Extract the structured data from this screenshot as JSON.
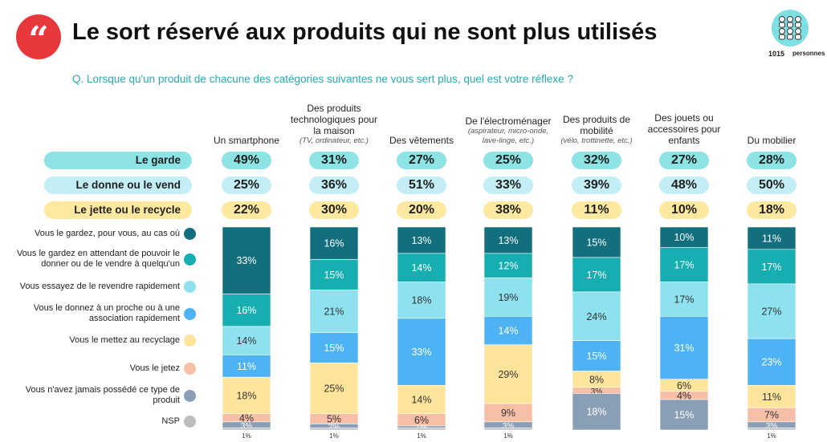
{
  "header": {
    "title": "Le sort réservé aux produits qui ne sont plus utilisés",
    "question": "Q. Lorsque qu'un produit de chacune des catégories suivantes ne vous sert plus, quel est votre réflexe ?",
    "quote_icon": "“",
    "respondents_count": "1015",
    "respondents_word": "personnes"
  },
  "colors": {
    "brand_red": "#e8383d",
    "garde": "#8ee3e5",
    "donne": "#c4eef5",
    "jette": "#ffe8a0",
    "question": "#2aa9b3"
  },
  "chart_data": {
    "type": "bar",
    "stacked": true,
    "categories": [
      {
        "label": "Un smartphone",
        "sub": ""
      },
      {
        "label": "Des produits technologiques pour la maison",
        "sub": "(TV, ordinateur, etc.)"
      },
      {
        "label": "Des vêtements",
        "sub": ""
      },
      {
        "label": "De l'électroménager",
        "sub": "(aspirateur, micro-onde, lave-linge, etc.)"
      },
      {
        "label": "Des produits de mobilité",
        "sub": "(vélo, trottinette, etc.)"
      },
      {
        "label": "Des jouets ou accessoires pour enfants",
        "sub": ""
      },
      {
        "label": "Du mobilier",
        "sub": ""
      }
    ],
    "summary_rows": [
      {
        "label": "Le garde",
        "values": [
          "49%",
          "31%",
          "27%",
          "25%",
          "32%",
          "27%",
          "28%"
        ]
      },
      {
        "label": "Le donne ou le vend",
        "values": [
          "25%",
          "36%",
          "51%",
          "33%",
          "39%",
          "48%",
          "50%"
        ]
      },
      {
        "label": "Le jette ou le recycle",
        "values": [
          "22%",
          "30%",
          "20%",
          "38%",
          "11%",
          "10%",
          "18%"
        ]
      }
    ],
    "series": [
      {
        "name": "Vous le gardez, pour vous, au cas où",
        "color": "#136f7e",
        "values": [
          33,
          16,
          13,
          13,
          15,
          10,
          11
        ]
      },
      {
        "name": "Vous le gardez en attendant de pouvoir le donner ou de le vendre à quelqu'un",
        "color": "#17aeb2",
        "values": [
          16,
          15,
          14,
          12,
          17,
          17,
          17
        ]
      },
      {
        "name": "Vous essayez de le revendre rapidement",
        "color": "#8ee1ef",
        "values": [
          14,
          21,
          18,
          19,
          24,
          17,
          27
        ]
      },
      {
        "name": "Vous le donnez à un proche ou à une association rapidement",
        "color": "#4eb3f5",
        "values": [
          11,
          15,
          33,
          14,
          15,
          31,
          23
        ]
      },
      {
        "name": "Vous le mettez au recyclage",
        "color": "#ffe59c",
        "values": [
          18,
          25,
          14,
          29,
          8,
          6,
          11
        ]
      },
      {
        "name": "Vous le jetez",
        "color": "#f7bfa5",
        "values": [
          4,
          5,
          6,
          9,
          3,
          4,
          7
        ]
      },
      {
        "name": "Vous n'avez jamais possédé ce type de produit",
        "color": "#8a9fb6",
        "values": [
          3,
          2,
          1,
          3,
          18,
          15,
          3
        ]
      },
      {
        "name": "NSP",
        "color": "#bdbdbd",
        "values": [
          1,
          1,
          1,
          1,
          0,
          0,
          1
        ]
      }
    ],
    "ylim": [
      0,
      100
    ]
  }
}
